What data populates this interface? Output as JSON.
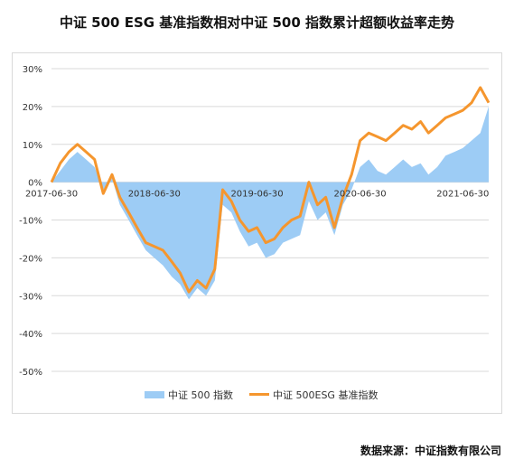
{
  "title": "中证 500 ESG 基准指数相对中证 500 指数累计超额收益率走势",
  "source": "数据来源：中证指数有限公司",
  "colors": {
    "area": "#9dccf5",
    "line": "#f5962e",
    "grid": "#d9d9d9"
  },
  "chart_data": {
    "type": "line",
    "xlabel": "",
    "ylabel": "",
    "ylim": [
      -0.5,
      0.3
    ],
    "x_ticks": [
      "2017-06-30",
      "2018-06-30",
      "2019-06-30",
      "2020-06-30",
      "2021-06-30"
    ],
    "y_ticks": [
      "30%",
      "20%",
      "10%",
      "0%",
      "-10%",
      "-20%",
      "-30%",
      "-40%",
      "-50%"
    ],
    "legend_position": "bottom",
    "grid": "horizontal",
    "x": [
      "2017-06-30",
      "2017-07-31",
      "2017-08-31",
      "2017-09-30",
      "2017-10-31",
      "2017-11-30",
      "2017-12-31",
      "2018-01-31",
      "2018-02-28",
      "2018-03-31",
      "2018-04-30",
      "2018-05-31",
      "2018-06-30",
      "2018-07-31",
      "2018-08-31",
      "2018-09-30",
      "2018-10-31",
      "2018-11-30",
      "2018-12-31",
      "2019-01-31",
      "2019-02-28",
      "2019-03-31",
      "2019-04-30",
      "2019-05-31",
      "2019-06-30",
      "2019-07-31",
      "2019-08-31",
      "2019-09-30",
      "2019-10-31",
      "2019-11-30",
      "2019-12-31",
      "2020-01-31",
      "2020-02-29",
      "2020-03-31",
      "2020-04-30",
      "2020-05-31",
      "2020-06-30",
      "2020-07-31",
      "2020-08-31",
      "2020-09-30",
      "2020-10-31",
      "2020-11-30",
      "2020-12-31",
      "2021-01-31",
      "2021-02-28",
      "2021-03-31",
      "2021-04-30",
      "2021-05-31",
      "2021-06-30",
      "2021-07-31",
      "2021-08-31",
      "2021-09-30"
    ],
    "series": [
      {
        "name": "中证 500 指数",
        "type": "area",
        "values": [
          0.0,
          0.03,
          0.06,
          0.08,
          0.06,
          0.04,
          -0.02,
          0.01,
          -0.06,
          -0.1,
          -0.14,
          -0.18,
          -0.2,
          -0.22,
          -0.25,
          -0.27,
          -0.31,
          -0.28,
          -0.3,
          -0.26,
          -0.06,
          -0.08,
          -0.13,
          -0.17,
          -0.16,
          -0.2,
          -0.19,
          -0.16,
          -0.15,
          -0.14,
          -0.05,
          -0.1,
          -0.08,
          -0.14,
          -0.06,
          -0.02,
          0.04,
          0.06,
          0.03,
          0.02,
          0.04,
          0.06,
          0.04,
          0.05,
          0.02,
          0.04,
          0.07,
          0.08,
          0.09,
          0.11,
          0.13,
          0.2
        ]
      },
      {
        "name": "中证 500ESG 基准指数",
        "type": "line",
        "values": [
          0.0,
          0.05,
          0.08,
          0.1,
          0.08,
          0.06,
          -0.03,
          0.02,
          -0.04,
          -0.08,
          -0.12,
          -0.16,
          -0.17,
          -0.18,
          -0.21,
          -0.24,
          -0.29,
          -0.26,
          -0.28,
          -0.23,
          -0.02,
          -0.05,
          -0.1,
          -0.13,
          -0.12,
          -0.16,
          -0.15,
          -0.12,
          -0.1,
          -0.09,
          0.0,
          -0.06,
          -0.04,
          -0.12,
          -0.04,
          0.02,
          0.11,
          0.13,
          0.12,
          0.11,
          0.13,
          0.15,
          0.14,
          0.16,
          0.13,
          0.15,
          0.17,
          0.18,
          0.19,
          0.21,
          0.25,
          0.21
        ]
      }
    ]
  }
}
